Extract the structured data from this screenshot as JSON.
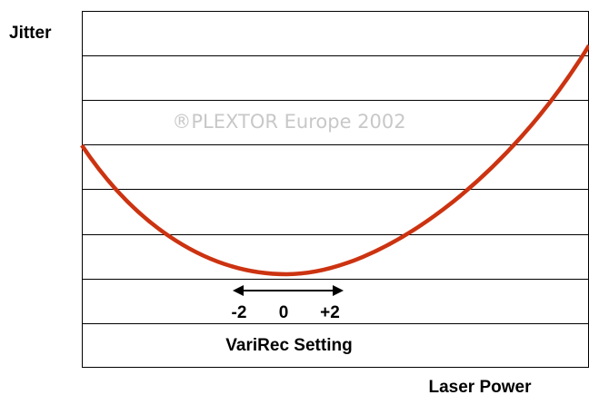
{
  "y_axis_label": "Jitter",
  "x_axis_label": "Laser Power",
  "watermark": "®PLEXTOR Europe 2002",
  "setting_labels": [
    "-2",
    "0",
    "+2"
  ],
  "setting_caption": "VariRec Setting"
}
